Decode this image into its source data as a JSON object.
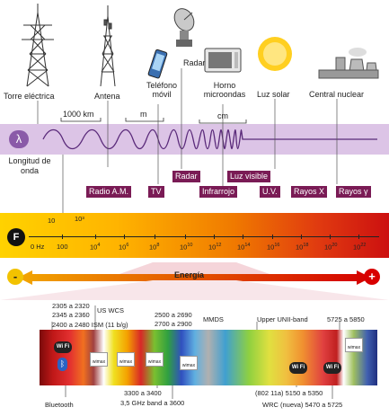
{
  "sources": {
    "torre": "Torre eléctrica",
    "antena": "Antena",
    "telefono": "Teléfono móvil",
    "radar": "Radar",
    "horno": "Horno microondas",
    "luz_solar": "Luz solar",
    "central": "Central nuclear"
  },
  "wave": {
    "symbol": "λ",
    "label": "Longitud de onda",
    "scale_1000km": "1000 km",
    "scale_m": "m",
    "scale_cm": "cm"
  },
  "bands": {
    "radio_am": "Radio A.M.",
    "tv": "TV",
    "radar": "Radar",
    "infrarrojo": "Infrarrojo",
    "luz_visible": "Luz visible",
    "uv": "U.V.",
    "rayos_x": "Rayos X",
    "rayos_gamma": "Rayos γ"
  },
  "freq": {
    "symbol": "F",
    "zero": "0 Hz",
    "upper": [
      "10",
      "10³"
    ],
    "ticks": [
      {
        "b": "100",
        "e": ""
      },
      {
        "b": "10",
        "e": "4"
      },
      {
        "b": "10",
        "e": "6"
      },
      {
        "b": "10",
        "e": "8"
      },
      {
        "b": "10",
        "e": "10"
      },
      {
        "b": "10",
        "e": "12"
      },
      {
        "b": "10",
        "e": "14"
      },
      {
        "b": "10",
        "e": "16"
      },
      {
        "b": "10",
        "e": "18"
      },
      {
        "b": "10",
        "e": "20"
      },
      {
        "b": "10",
        "e": "22"
      }
    ]
  },
  "energy": {
    "label": "Energía",
    "minus": "-",
    "plus": "+"
  },
  "detail": {
    "us_wcs_a": "2305 a 2320",
    "us_wcs_b": "2345 a 2360",
    "us_wcs": "US WCS",
    "ism": "2400 a 2480 ISM (11 b/g)",
    "mmds_a": "2500 a 2690",
    "mmds_b": "2700 a 2900",
    "mmds": "MMDS",
    "unii": "Upper UNII-band",
    "unii_range": "5725 a 5850",
    "bluetooth": "Bluetooth",
    "r3300": "3300 a 3400",
    "r35": "3,5 GHz band a 3600",
    "r802": "(802 11a)  5150 a 5350",
    "wrc": "WRC (nueva)  5470 a 5725",
    "wifi": "Wi Fi",
    "bt_symbol": "ᛒ",
    "wimax": "wimax"
  },
  "colors": {
    "wave_band": "#dcc4e6",
    "tag": "#7a1b55",
    "freq_left": "#ffd000",
    "freq_right": "#d21010",
    "energy_left": "#f0a000",
    "energy_right": "#d40000"
  }
}
